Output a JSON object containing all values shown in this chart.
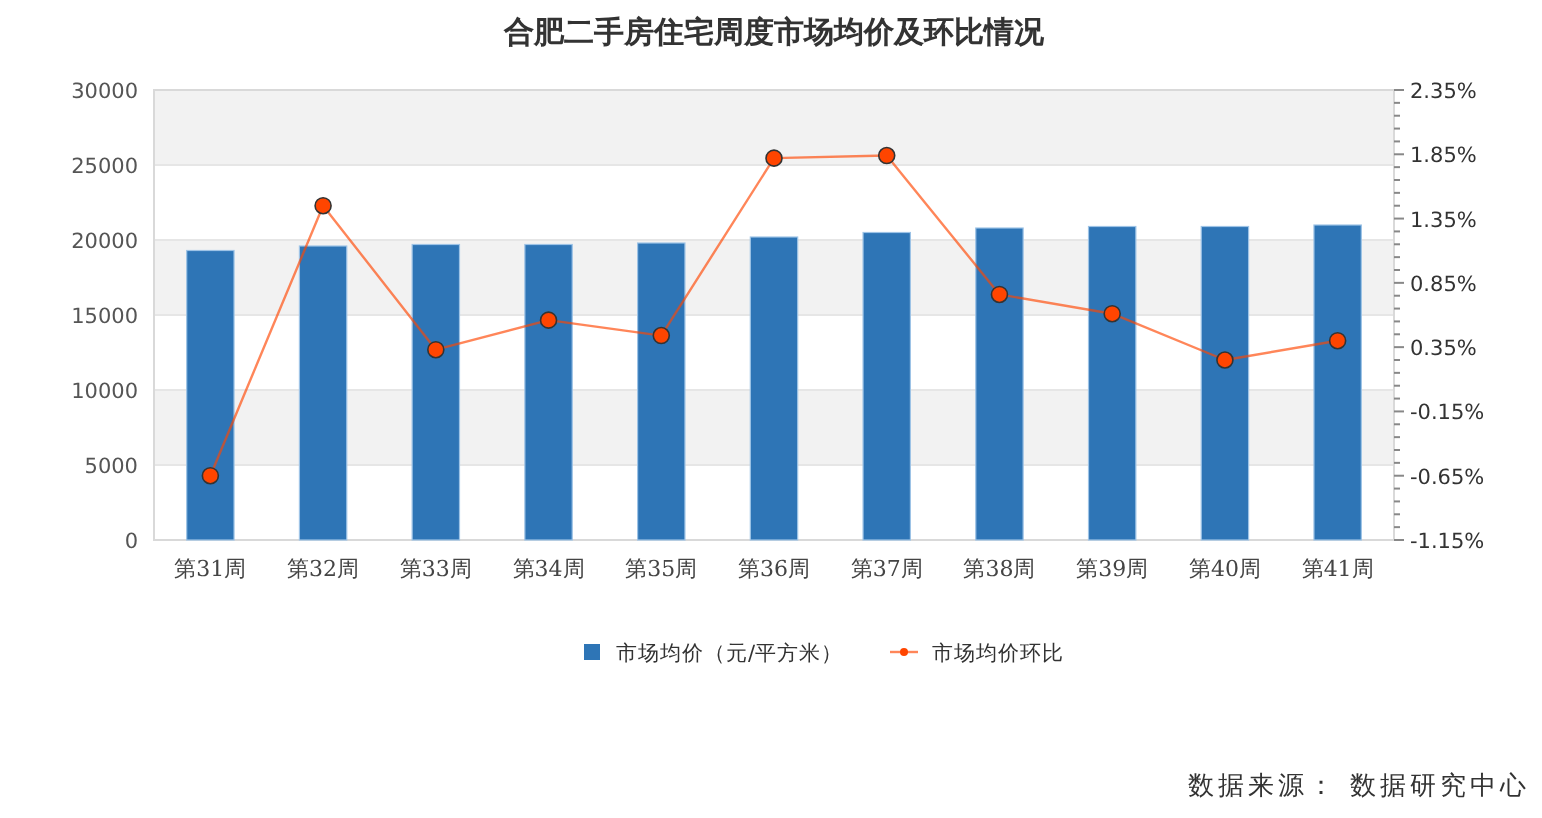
{
  "chart_data": {
    "type": "bar",
    "title": "合肥二手房住宅周度市场均价及环比情况",
    "categories": [
      "第31周",
      "第32周",
      "第33周",
      "第34周",
      "第35周",
      "第36周",
      "第37周",
      "第38周",
      "第39周",
      "第40周",
      "第41周"
    ],
    "series": [
      {
        "name": "市场均价（元/平方米）",
        "color": "#2e75b6",
        "values": [
          19300,
          19600,
          19700,
          19700,
          19800,
          20200,
          20500,
          20800,
          20900,
          20900,
          21000
        ]
      },
      {
        "name": "市场均价环比",
        "type": "line",
        "axis": "y2",
        "color": "#ff4500",
        "marker": "circle",
        "values": [
          -0.65,
          1.45,
          0.33,
          0.56,
          0.44,
          1.82,
          1.84,
          0.76,
          0.61,
          0.25,
          0.4
        ]
      }
    ],
    "ylim": [
      0,
      30000
    ],
    "yticks": [
      0,
      5000,
      10000,
      15000,
      20000,
      25000,
      30000
    ],
    "y2lim": [
      -1.15,
      2.35
    ],
    "y2ticks": [
      {
        "value": -1.15,
        "label": "-1.15%"
      },
      {
        "value": -1.05,
        "label": null
      },
      {
        "value": -0.95,
        "label": null
      },
      {
        "value": -0.85,
        "label": null
      },
      {
        "value": -0.75,
        "label": null
      },
      {
        "value": -0.65,
        "label": "-0.65%"
      },
      {
        "value": -0.55,
        "label": null
      },
      {
        "value": -0.45,
        "label": null
      },
      {
        "value": -0.35,
        "label": null
      },
      {
        "value": -0.25,
        "label": null
      },
      {
        "value": -0.15,
        "label": "-0.15%"
      },
      {
        "value": -0.05,
        "label": null
      },
      {
        "value": 0.05,
        "label": null
      },
      {
        "value": 0.15,
        "label": null
      },
      {
        "value": 0.25,
        "label": null
      },
      {
        "value": 0.35,
        "label": "0.35%"
      },
      {
        "value": 0.45,
        "label": null
      },
      {
        "value": 0.55,
        "label": null
      },
      {
        "value": 0.65,
        "label": null
      },
      {
        "value": 0.75,
        "label": null
      },
      {
        "value": 0.85,
        "label": "0.85%"
      },
      {
        "value": 0.95,
        "label": null
      },
      {
        "value": 1.05,
        "label": null
      },
      {
        "value": 1.15,
        "label": null
      },
      {
        "value": 1.25,
        "label": null
      },
      {
        "value": 1.35,
        "label": "1.35%"
      },
      {
        "value": 1.45,
        "label": null
      },
      {
        "value": 1.55,
        "label": null
      },
      {
        "value": 1.65,
        "label": null
      },
      {
        "value": 1.75,
        "label": null
      },
      {
        "value": 1.85,
        "label": "1.85%"
      },
      {
        "value": 1.95,
        "label": null
      },
      {
        "value": 2.05,
        "label": null
      },
      {
        "value": 2.15,
        "label": null
      },
      {
        "value": 2.25,
        "label": null
      },
      {
        "value": 2.35,
        "label": "2.35%"
      }
    ],
    "grid": "y",
    "legend": "bottom",
    "annotations": [
      "数据来源： 数据研究中心"
    ]
  }
}
